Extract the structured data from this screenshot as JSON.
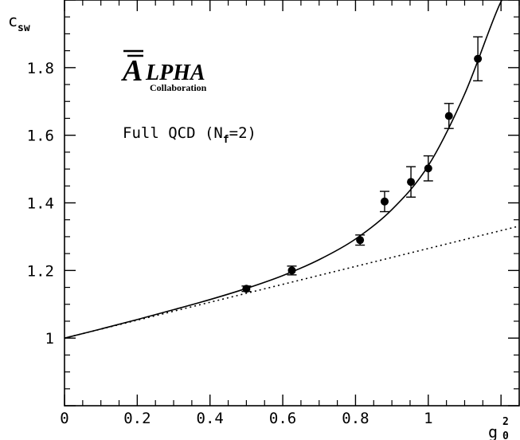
{
  "chart_data": {
    "type": "scatter",
    "title": "",
    "xlabel": "g",
    "xlabel_sup": "2",
    "xlabel_sub": "0",
    "ylabel": "c",
    "ylabel_sub": "sw",
    "xlim": [
      0,
      1.25
    ],
    "ylim": [
      0.8,
      2.0
    ],
    "x_ticks": [
      0,
      0.2,
      0.4,
      0.6,
      0.8,
      1
    ],
    "x_tick_labels": [
      "0",
      "0.2",
      "0.4",
      "0.6",
      "0.8",
      "1"
    ],
    "y_ticks": [
      1,
      1.2,
      1.4,
      1.6,
      1.8
    ],
    "y_tick_labels": [
      "1",
      "1.2",
      "1.4",
      "1.6",
      "1.8"
    ],
    "grid": false,
    "series": [
      {
        "kind": "points_with_errorbars",
        "x": [
          0.5,
          0.625,
          0.8125,
          0.88,
          0.9524,
          1.0,
          1.0568,
          1.1364
        ],
        "y": [
          1.146,
          1.2,
          1.29,
          1.404,
          1.462,
          1.502,
          1.657,
          1.826
        ],
        "yerr": [
          0.008,
          0.013,
          0.015,
          0.03,
          0.045,
          0.037,
          0.037,
          0.065
        ]
      },
      {
        "kind": "solid_curve",
        "x": [
          0,
          0.1,
          0.2,
          0.3,
          0.4,
          0.5,
          0.6,
          0.7,
          0.8,
          0.9,
          1.0,
          1.1,
          1.2,
          1.235
        ],
        "y": [
          1.0,
          1.027,
          1.055,
          1.084,
          1.114,
          1.147,
          1.185,
          1.232,
          1.293,
          1.38,
          1.51,
          1.722,
          1.995,
          2.0
        ]
      },
      {
        "kind": "dotted_line",
        "x": [
          0,
          1.25
        ],
        "y": [
          1.0,
          1.3313
        ]
      }
    ],
    "annotations": {
      "logo_bar_letter": "A",
      "logo_text": "LPHA",
      "logo_sub": "Collaboration",
      "label_main": "Full QCD (N",
      "label_sub": "f",
      "label_end": "=2)"
    }
  }
}
